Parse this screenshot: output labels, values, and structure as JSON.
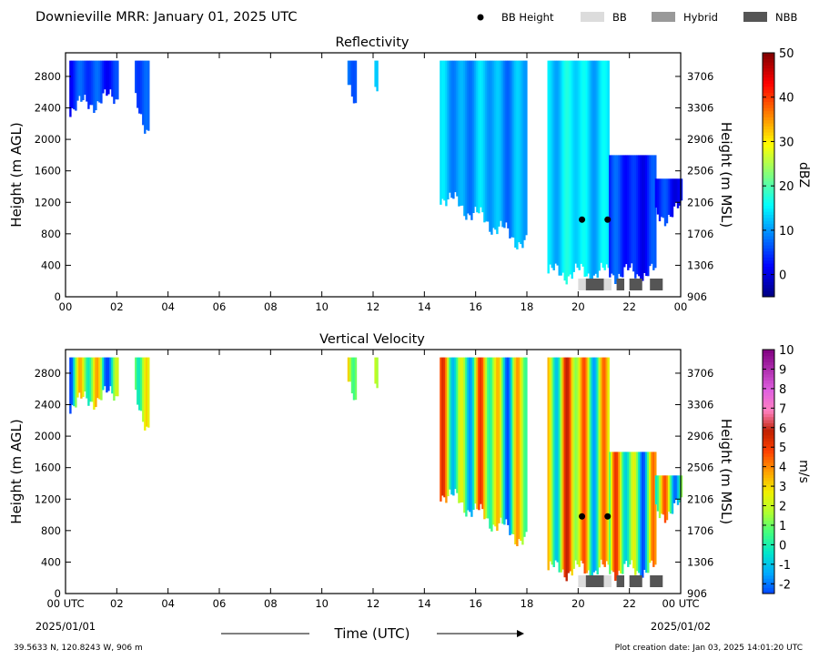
{
  "header": {
    "title": "Downieville MRR:  January 01, 2025 UTC",
    "legend": [
      {
        "label": "BB Height",
        "kind": "dot",
        "color": "#000000"
      },
      {
        "label": "BB",
        "kind": "box",
        "color": "#dcdcdc"
      },
      {
        "label": "Hybrid",
        "kind": "box",
        "color": "#999999"
      },
      {
        "label": "NBB",
        "kind": "box",
        "color": "#555555"
      }
    ]
  },
  "footer": {
    "location": "39.5633 N, 120.8243 W, 906 m",
    "creation": "Plot creation date: Jan 03, 2025 14:01:20 UTC",
    "xlabel": "Time (UTC)",
    "start_date": "2025/01/01",
    "end_date": "2025/01/02"
  },
  "chart_data": [
    {
      "type": "heatmap",
      "title": "Reflectivity",
      "ylabel": "Height (m AGL)",
      "y2label": "Height (m MSL)",
      "colorbar_label": "dBZ",
      "xlim": [
        0,
        24
      ],
      "ylim": [
        0,
        3100
      ],
      "x_ticks": [
        "00",
        "02",
        "04",
        "06",
        "08",
        "10",
        "12",
        "14",
        "16",
        "18",
        "20",
        "22",
        "00"
      ],
      "y_ticks": [
        0,
        400,
        800,
        1200,
        1600,
        2000,
        2400,
        2800
      ],
      "y2_ticks": [
        906,
        1306,
        1706,
        2106,
        2506,
        2906,
        3306,
        3706
      ],
      "colorbar": {
        "min": -5,
        "max": 50,
        "ticks": [
          "0",
          "10",
          "20",
          "30",
          "40",
          "50"
        ],
        "tick_values": [
          0,
          10,
          20,
          30,
          40,
          50
        ],
        "colors": [
          "#00007f",
          "#0000ff",
          "#007fff",
          "#00ffff",
          "#7fff7f",
          "#ffff00",
          "#ff7f00",
          "#ff0000",
          "#7f0000"
        ]
      },
      "echo_regions": [
        {
          "x": [
            0.15,
            2.05
          ],
          "top": 3000,
          "bottom": [
            2400,
            2550
          ],
          "value": 5
        },
        {
          "x": [
            2.7,
            3.2
          ],
          "top": 3000,
          "bottom": [
            2500,
            2100
          ],
          "value": 6
        },
        {
          "x": [
            11.0,
            11.3
          ],
          "top": 3000,
          "bottom": [
            2700,
            2300
          ],
          "value": 7
        },
        {
          "x": [
            12.05,
            12.15
          ],
          "top": 3000,
          "bottom": [
            2600,
            2600
          ],
          "value": 12
        },
        {
          "x": [
            14.6,
            18.0
          ],
          "top": 3000,
          "bottom": [
            1300,
            650
          ],
          "value": 11
        },
        {
          "x": [
            18.8,
            21.2
          ],
          "top": 3000,
          "bottom": [
            300,
            300
          ],
          "value": 14
        },
        {
          "x": [
            21.2,
            23.0
          ],
          "top": 1800,
          "bottom": [
            300,
            300
          ],
          "value": 4
        },
        {
          "x": [
            23.0,
            24.0
          ],
          "top": 1500,
          "bottom": [
            1000,
            1100
          ],
          "value": 3
        }
      ],
      "bb_height_points": [
        {
          "x": 20.15,
          "y": 980
        },
        {
          "x": 21.15,
          "y": 980
        }
      ],
      "bb_type_bars": [
        {
          "x": [
            20.0,
            20.3
          ],
          "type": "BB"
        },
        {
          "x": [
            20.3,
            21.0
          ],
          "type": "NBB"
        },
        {
          "x": [
            21.0,
            21.3
          ],
          "type": "BB"
        },
        {
          "x": [
            21.5,
            21.8
          ],
          "type": "NBB"
        },
        {
          "x": [
            22.0,
            22.5
          ],
          "type": "NBB"
        },
        {
          "x": [
            22.8,
            23.3
          ],
          "type": "NBB"
        }
      ]
    },
    {
      "type": "heatmap",
      "title": "Vertical Velocity",
      "ylabel": "Height (m AGL)",
      "y2label": "Height (m MSL)",
      "colorbar_label": "m/s",
      "xlim": [
        0,
        24
      ],
      "ylim": [
        0,
        3100
      ],
      "x_ticks": [
        "00 UTC",
        "02",
        "04",
        "06",
        "08",
        "10",
        "12",
        "14",
        "16",
        "18",
        "20",
        "22",
        "00 UTC"
      ],
      "y_ticks": [
        0,
        400,
        800,
        1200,
        1600,
        2000,
        2400,
        2800
      ],
      "y2_ticks": [
        906,
        1306,
        1706,
        2106,
        2506,
        2906,
        3306,
        3706
      ],
      "colorbar": {
        "min": -2.5,
        "max": 10,
        "ticks": [
          "-2",
          "-1",
          "0",
          "1",
          "2",
          "3",
          "4",
          "5",
          "6",
          "7",
          "8",
          "9",
          "10"
        ],
        "tick_values": [
          -2,
          -1,
          0,
          1,
          2,
          3,
          4,
          5,
          6,
          7,
          8,
          9,
          10
        ],
        "colors": [
          "#0044ff",
          "#00aaff",
          "#00e5cc",
          "#40ff80",
          "#b0ff30",
          "#f0f000",
          "#ffa000",
          "#ff4000",
          "#c02000",
          "#ff80c0",
          "#e060e0",
          "#b030b0",
          "#800080"
        ]
      },
      "echo_regions": [
        {
          "x": [
            0.15,
            2.05
          ],
          "top": 3000,
          "bottom": [
            2400,
            2550
          ],
          "value": 0.8
        },
        {
          "x": [
            2.7,
            3.2
          ],
          "top": 3000,
          "bottom": [
            2500,
            2100
          ],
          "value": 1.2
        },
        {
          "x": [
            11.0,
            11.3
          ],
          "top": 3000,
          "bottom": [
            2700,
            2300
          ],
          "value": 1.5
        },
        {
          "x": [
            12.05,
            12.15
          ],
          "top": 3000,
          "bottom": [
            2600,
            2600
          ],
          "value": 1.0
        },
        {
          "x": [
            14.6,
            18.0
          ],
          "top": 3000,
          "bottom": [
            1300,
            650
          ],
          "value": 1.5
        },
        {
          "x": [
            18.8,
            21.2
          ],
          "top": 3000,
          "bottom": [
            300,
            300
          ],
          "value": 2.4
        },
        {
          "x": [
            21.2,
            23.0
          ],
          "top": 1800,
          "bottom": [
            300,
            300
          ],
          "value": 1.2
        },
        {
          "x": [
            23.0,
            24.0
          ],
          "top": 1500,
          "bottom": [
            1000,
            1100
          ],
          "value": 1.0
        }
      ],
      "bb_height_points": [
        {
          "x": 20.15,
          "y": 980
        },
        {
          "x": 21.15,
          "y": 980
        }
      ],
      "bb_type_bars": [
        {
          "x": [
            20.0,
            20.3
          ],
          "type": "BB"
        },
        {
          "x": [
            20.3,
            21.0
          ],
          "type": "NBB"
        },
        {
          "x": [
            21.0,
            21.3
          ],
          "type": "BB"
        },
        {
          "x": [
            21.5,
            21.8
          ],
          "type": "NBB"
        },
        {
          "x": [
            22.0,
            22.5
          ],
          "type": "NBB"
        },
        {
          "x": [
            22.8,
            23.3
          ],
          "type": "NBB"
        }
      ]
    }
  ]
}
